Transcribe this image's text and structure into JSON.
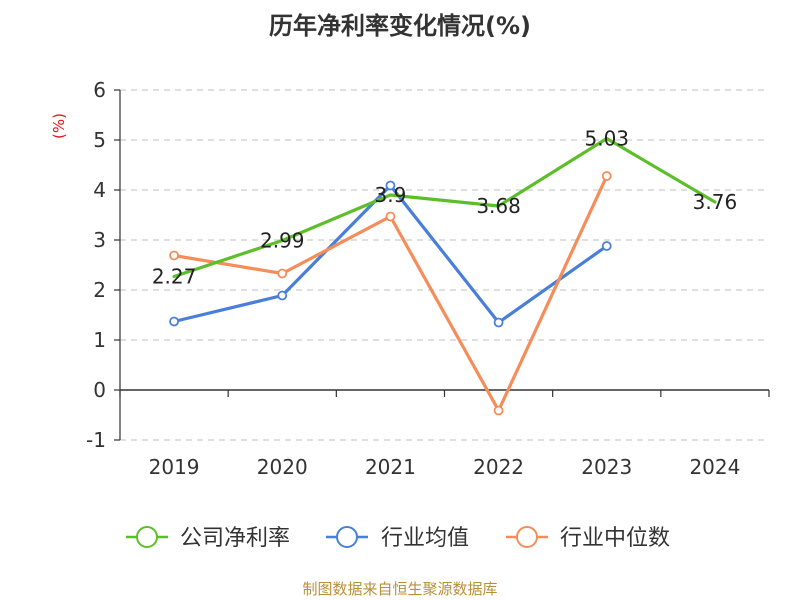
{
  "chart_data": {
    "type": "line",
    "title": "历年净利率变化情况(%)",
    "unit_label": "(%)",
    "categories": [
      "2019",
      "2020",
      "2021",
      "2022",
      "2023",
      "2024"
    ],
    "ylim": [
      -1,
      6
    ],
    "yticks": [
      -1,
      0,
      1,
      2,
      3,
      4,
      5,
      6
    ],
    "grid": true,
    "legend_position": "bottom",
    "series": [
      {
        "name": "公司净利率",
        "color": "#5cbf2a",
        "values": [
          2.27,
          2.99,
          3.9,
          3.68,
          5.03,
          3.76
        ],
        "labels": [
          "2.27",
          "2.99",
          "3.9",
          "3.68",
          "5.03",
          "3.76"
        ]
      },
      {
        "name": "行业均值",
        "color": "#4a7fd9",
        "values": [
          1.37,
          1.89,
          4.09,
          1.35,
          2.88,
          null
        ]
      },
      {
        "name": "行业中位数",
        "color": "#f58d5a",
        "values": [
          2.69,
          2.33,
          3.47,
          -0.41,
          4.28,
          null
        ]
      }
    ],
    "source": "制图数据来自恒生聚源数据库"
  }
}
